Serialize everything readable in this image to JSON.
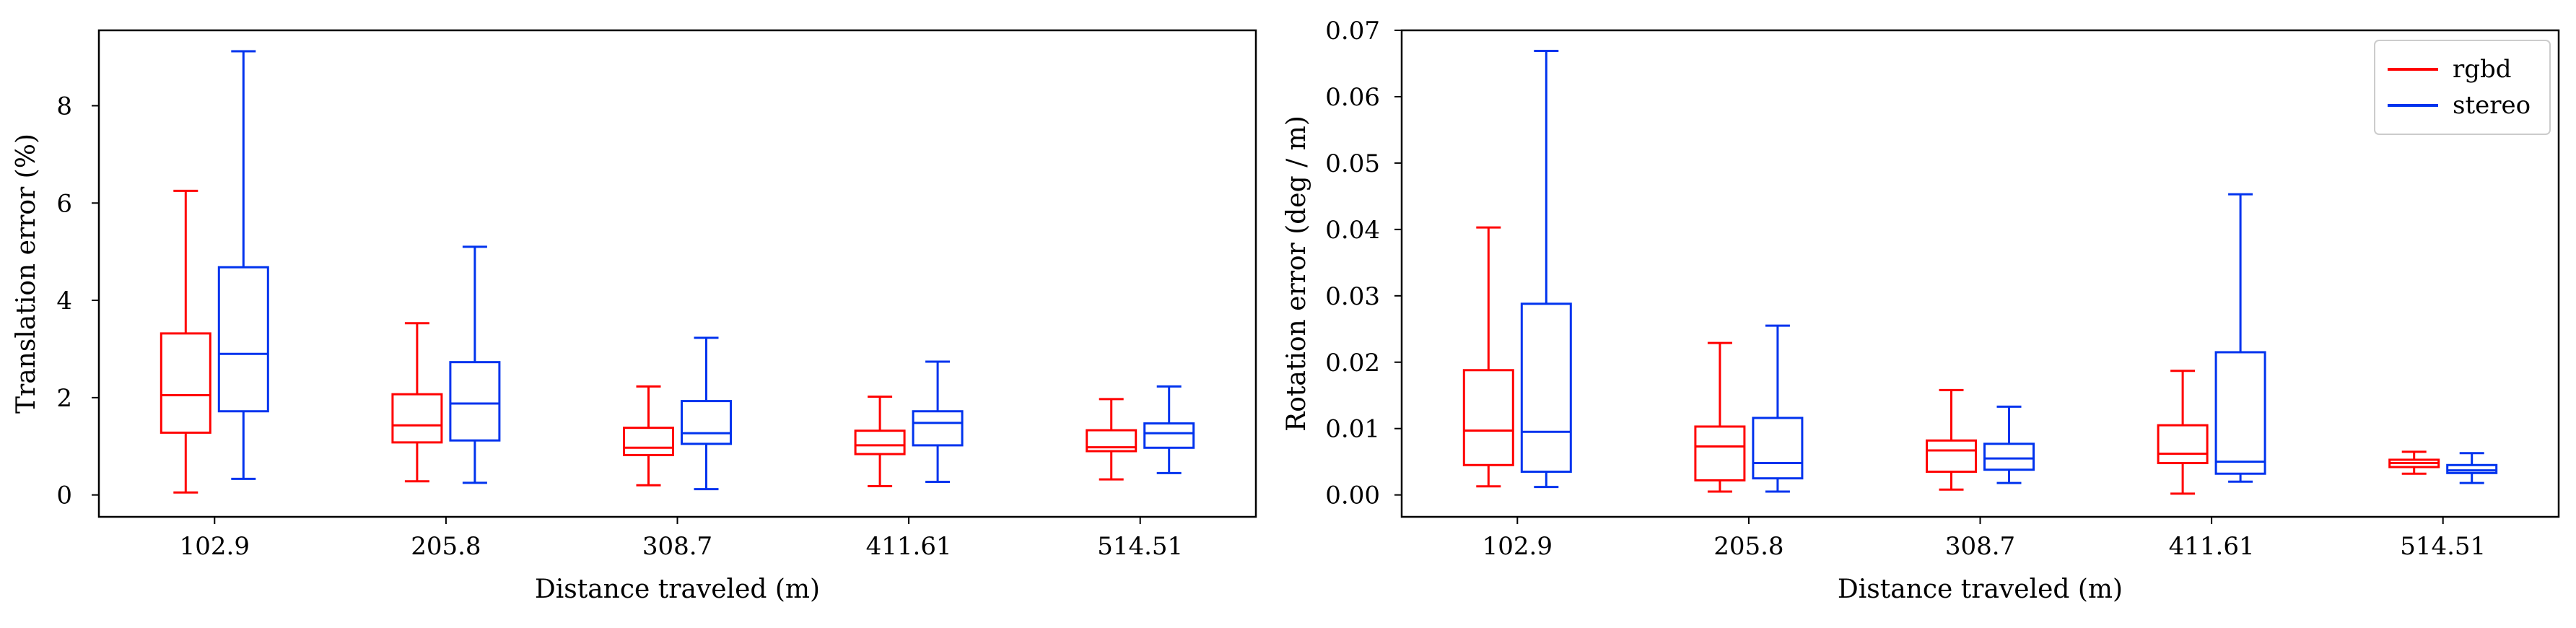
{
  "chart_data": [
    {
      "type": "box",
      "xlabel": "Distance traveled (m)",
      "ylabel": "Translation error (%)",
      "categories": [
        "102.9",
        "205.8",
        "308.7",
        "411.61",
        "514.51"
      ],
      "ylim": [
        -0.45,
        9.55
      ],
      "yticks": [
        0,
        2,
        4,
        6,
        8
      ],
      "ytick_labels": [
        "0",
        "2",
        "4",
        "6",
        "8"
      ],
      "grid": false,
      "series": [
        {
          "name": "rgbd",
          "color": "#ff0000",
          "boxes": [
            {
              "whisker_low": 0.05,
              "q1": 1.28,
              "median": 2.05,
              "q3": 3.32,
              "whisker_high": 6.25
            },
            {
              "whisker_low": 0.28,
              "q1": 1.08,
              "median": 1.43,
              "q3": 2.07,
              "whisker_high": 3.53
            },
            {
              "whisker_low": 0.2,
              "q1": 0.82,
              "median": 0.97,
              "q3": 1.38,
              "whisker_high": 2.23
            },
            {
              "whisker_low": 0.18,
              "q1": 0.84,
              "median": 1.02,
              "q3": 1.32,
              "whisker_high": 2.02
            },
            {
              "whisker_low": 0.32,
              "q1": 0.9,
              "median": 0.98,
              "q3": 1.33,
              "whisker_high": 1.97
            }
          ]
        },
        {
          "name": "stereo",
          "color": "#0033ee",
          "boxes": [
            {
              "whisker_low": 0.33,
              "q1": 1.72,
              "median": 2.9,
              "q3": 4.68,
              "whisker_high": 9.12
            },
            {
              "whisker_low": 0.25,
              "q1": 1.12,
              "median": 1.88,
              "q3": 2.73,
              "whisker_high": 5.1
            },
            {
              "whisker_low": 0.12,
              "q1": 1.05,
              "median": 1.27,
              "q3": 1.93,
              "whisker_high": 3.23
            },
            {
              "whisker_low": 0.27,
              "q1": 1.02,
              "median": 1.48,
              "q3": 1.72,
              "whisker_high": 2.74
            },
            {
              "whisker_low": 0.45,
              "q1": 0.97,
              "median": 1.27,
              "q3": 1.47,
              "whisker_high": 2.23
            }
          ]
        }
      ]
    },
    {
      "type": "box",
      "xlabel": "Distance traveled (m)",
      "ylabel": "Rotation error (deg / m)",
      "categories": [
        "102.9",
        "205.8",
        "308.7",
        "411.61",
        "514.51"
      ],
      "ylim": [
        -0.0033,
        0.07
      ],
      "yticks": [
        0,
        0.01,
        0.02,
        0.03,
        0.04,
        0.05,
        0.06,
        0.07
      ],
      "ytick_labels": [
        "0.00",
        "0.01",
        "0.02",
        "0.03",
        "0.04",
        "0.05",
        "0.06",
        "0.07"
      ],
      "grid": false,
      "legend": {
        "position": "top-right",
        "entries": [
          "rgbd",
          "stereo"
        ]
      },
      "series": [
        {
          "name": "rgbd",
          "color": "#ff0000",
          "boxes": [
            {
              "whisker_low": 0.0013,
              "q1": 0.0045,
              "median": 0.0097,
              "q3": 0.0188,
              "whisker_high": 0.0403
            },
            {
              "whisker_low": 0.0005,
              "q1": 0.0022,
              "median": 0.0073,
              "q3": 0.0103,
              "whisker_high": 0.0229
            },
            {
              "whisker_low": 0.0008,
              "q1": 0.0035,
              "median": 0.0067,
              "q3": 0.0082,
              "whisker_high": 0.0158
            },
            {
              "whisker_low": 0.0002,
              "q1": 0.0048,
              "median": 0.0062,
              "q3": 0.0105,
              "whisker_high": 0.0187
            },
            {
              "whisker_low": 0.0032,
              "q1": 0.0042,
              "median": 0.0048,
              "q3": 0.0053,
              "whisker_high": 0.0065
            }
          ]
        },
        {
          "name": "stereo",
          "color": "#0033ee",
          "boxes": [
            {
              "whisker_low": 0.0012,
              "q1": 0.0035,
              "median": 0.0095,
              "q3": 0.0288,
              "whisker_high": 0.0669
            },
            {
              "whisker_low": 0.0005,
              "q1": 0.0025,
              "median": 0.0048,
              "q3": 0.0116,
              "whisker_high": 0.0255
            },
            {
              "whisker_low": 0.0018,
              "q1": 0.0038,
              "median": 0.0055,
              "q3": 0.0077,
              "whisker_high": 0.0133
            },
            {
              "whisker_low": 0.002,
              "q1": 0.0032,
              "median": 0.005,
              "q3": 0.0215,
              "whisker_high": 0.0453
            },
            {
              "whisker_low": 0.0018,
              "q1": 0.0033,
              "median": 0.0037,
              "q3": 0.0045,
              "whisker_high": 0.0063
            }
          ]
        }
      ]
    }
  ]
}
